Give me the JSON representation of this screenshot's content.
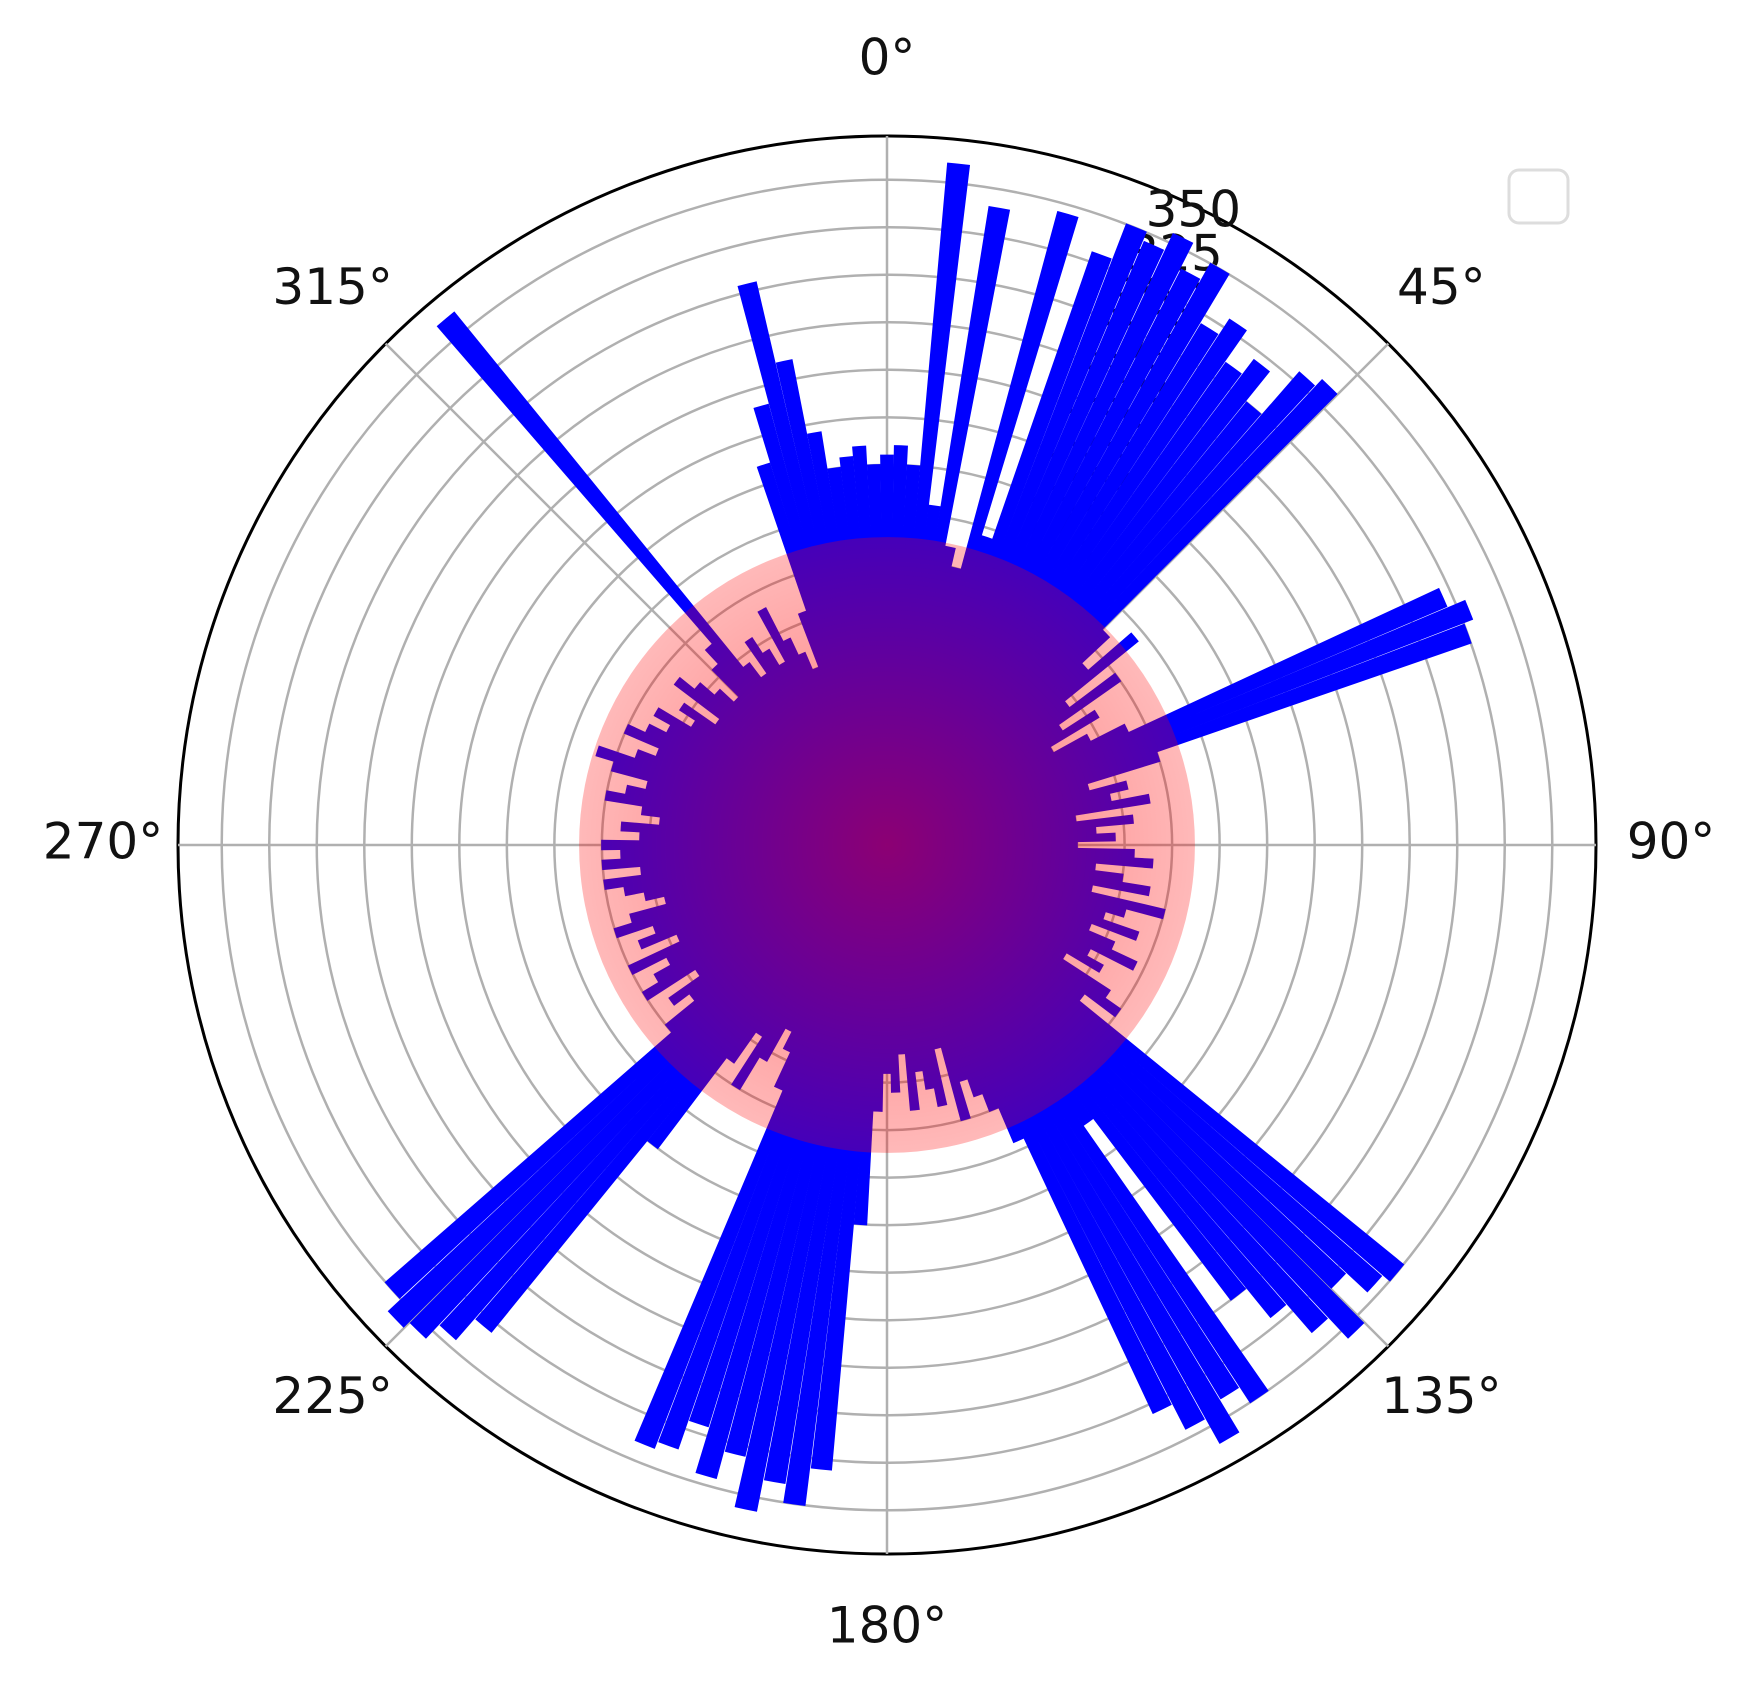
{
  "chart_data": {
    "type": "polar-bar",
    "color": "#0000ff",
    "theta": [
      0,
      2,
      4,
      6,
      8,
      10,
      12,
      14,
      16,
      18,
      20,
      22,
      24,
      26,
      28,
      30,
      32,
      34,
      36,
      38,
      40,
      42,
      44,
      46,
      48,
      50,
      52,
      54,
      56,
      58,
      60,
      62,
      64,
      66,
      68,
      70,
      72,
      74,
      76,
      78,
      80,
      82,
      84,
      86,
      88,
      90,
      92,
      94,
      96,
      98,
      100,
      102,
      104,
      106,
      108,
      110,
      112,
      114,
      116,
      118,
      120,
      122,
      124,
      126,
      128,
      130,
      132,
      134,
      136,
      138,
      140,
      142,
      144,
      146,
      148,
      150,
      152,
      154,
      156,
      158,
      160,
      162,
      164,
      166,
      168,
      170,
      172,
      174,
      176,
      178,
      180,
      182,
      184,
      186,
      188,
      190,
      192,
      194,
      196,
      198,
      200,
      202,
      204,
      206,
      208,
      210,
      212,
      214,
      216,
      218,
      220,
      222,
      224,
      226,
      228,
      230,
      232,
      234,
      236,
      238,
      240,
      242,
      244,
      246,
      248,
      250,
      252,
      254,
      256,
      258,
      260,
      262,
      264,
      266,
      268,
      270,
      272,
      274,
      276,
      278,
      280,
      282,
      284,
      286,
      288,
      290,
      292,
      294,
      296,
      298,
      300,
      302,
      304,
      306,
      308,
      310,
      312,
      314,
      316,
      318,
      320,
      322,
      324,
      326,
      328,
      330,
      332,
      334,
      336,
      338,
      340,
      342,
      344,
      346,
      348,
      350,
      352,
      354,
      356,
      358
    ],
    "values": [
      205,
      210,
      200,
      360,
      180,
      340,
      160,
      150,
      345,
      170,
      330,
      350,
      345,
      355,
      340,
      350,
      320,
      330,
      310,
      320,
      300,
      330,
      335,
      160,
      140,
      170,
      120,
      150,
      110,
      130,
      100,
      120,
      140,
      320,
      330,
      325,
      150,
      110,
      130,
      120,
      140,
      100,
      130,
      110,
      120,
      100,
      130,
      140,
      110,
      125,
      140,
      110,
      150,
      130,
      120,
      140,
      115,
      130,
      145,
      120,
      130,
      110,
      140,
      150,
      130,
      350,
      345,
      330,
      355,
      340,
      320,
      300,
      180,
      350,
      340,
      360,
      345,
      330,
      170,
      150,
      140,
      130,
      150,
      110,
      140,
      130,
      120,
      140,
      110,
      130,
      120,
      140,
      200,
      330,
      350,
      340,
      357,
      330,
      345,
      320,
      336,
      340,
      140,
      120,
      110,
      130,
      150,
      120,
      140,
      200,
      330,
      345,
      355,
      359,
      350,
      150,
      130,
      140,
      120,
      150,
      140,
      130,
      150,
      120,
      140,
      130,
      150,
      140,
      120,
      130,
      140,
      150,
      130,
      150,
      140,
      150,
      130,
      140,
      120,
      130,
      150,
      140,
      130,
      150,
      160,
      140,
      130,
      150,
      140,
      130,
      140,
      120,
      130,
      110,
      140,
      130,
      120,
      110,
      130,
      140,
      361,
      120,
      110,
      130,
      120,
      110,
      140,
      120,
      110,
      100,
      130,
      210,
      240,
      304,
      260,
      220,
      200,
      205,
      210,
      200
    ],
    "rlim": [
      0,
      373
    ],
    "rticks": [
      25,
      50,
      75,
      100,
      125,
      150,
      175,
      200,
      225,
      250,
      275,
      300,
      325,
      350
    ],
    "thetaticks": [
      {
        "value": 0,
        "label": "0°"
      },
      {
        "value": 45,
        "label": "45°"
      },
      {
        "value": 90,
        "label": "90°"
      },
      {
        "value": 135,
        "label": "135°"
      },
      {
        "value": 180,
        "label": "180°"
      },
      {
        "value": 225,
        "label": "225°"
      },
      {
        "value": 270,
        "label": "270°"
      },
      {
        "value": 315,
        "label": "315°"
      }
    ],
    "circle_radius": 162,
    "circle_color": "#ff0000",
    "grid": true
  }
}
